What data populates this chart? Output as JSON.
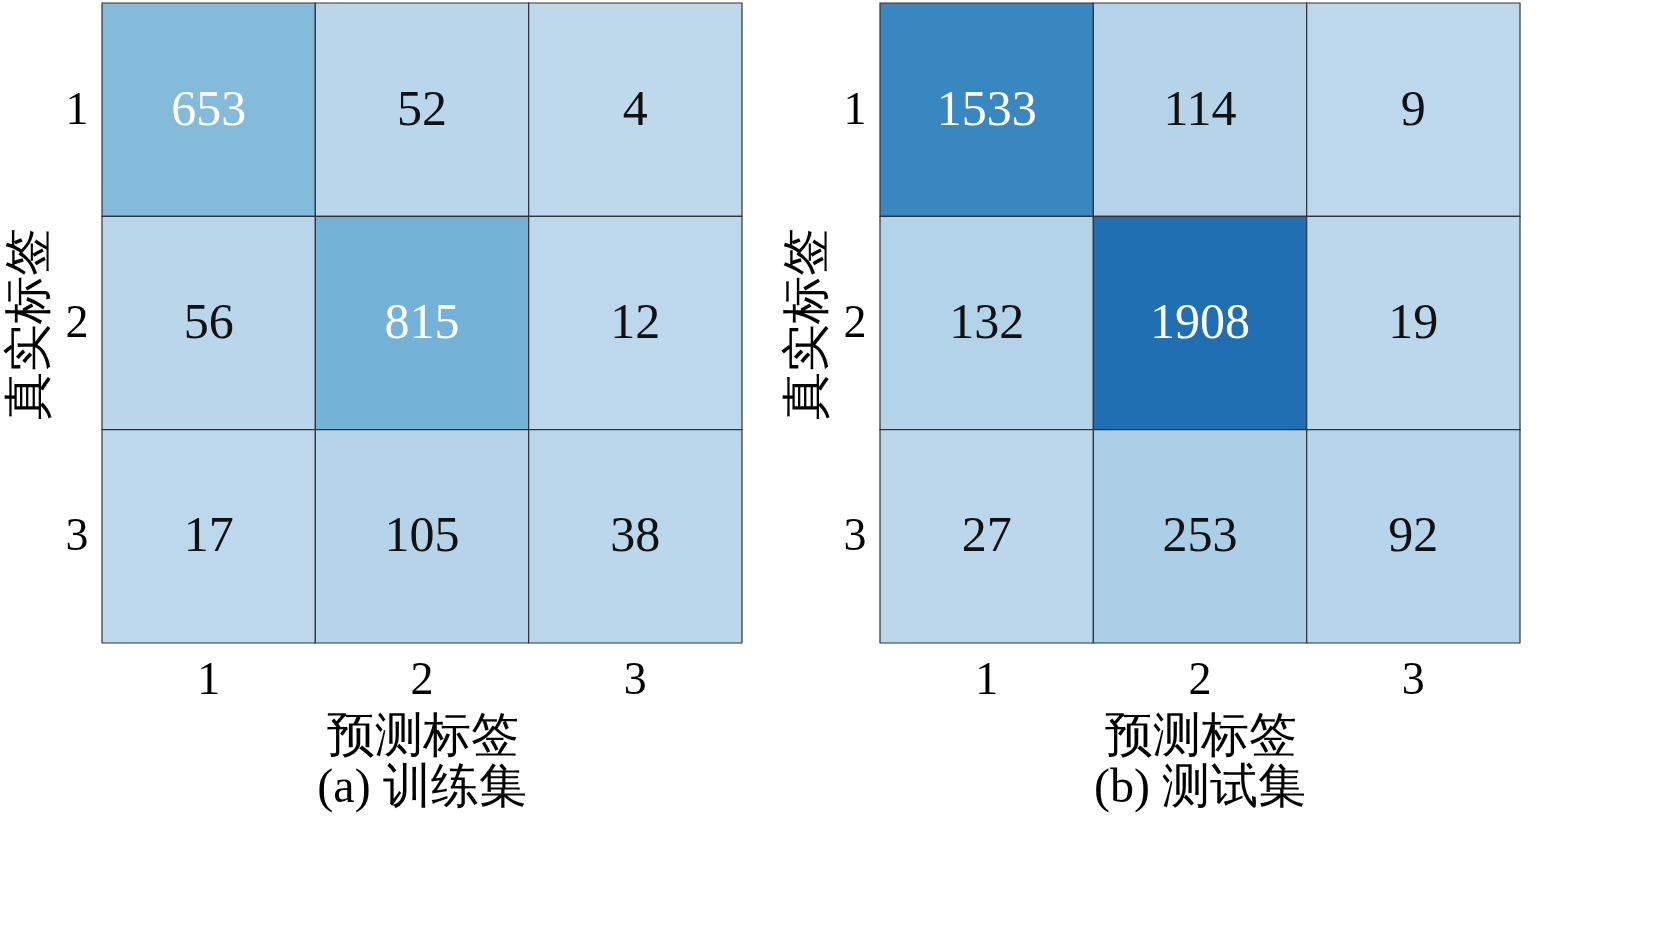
{
  "chart_data": [
    {
      "type": "heatmap",
      "title": "(a) 训练集",
      "xlabel": "预测标签",
      "ylabel": "真实标签",
      "categories": [
        "1",
        "2",
        "3"
      ],
      "y_categories": [
        "1",
        "2",
        "3"
      ],
      "data_labels": true,
      "cells": [
        [
          653,
          52,
          4
        ],
        [
          56,
          815,
          12
        ],
        [
          17,
          105,
          38
        ]
      ]
    },
    {
      "type": "heatmap",
      "title": "(b) 测试集",
      "xlabel": "预测标签",
      "ylabel": "真实标签",
      "categories": [
        "1",
        "2",
        "3"
      ],
      "y_categories": [
        "1",
        "2",
        "3"
      ],
      "data_labels": true,
      "cells": [
        [
          1533,
          114,
          9
        ],
        [
          132,
          1908,
          19
        ],
        [
          27,
          253,
          92
        ]
      ]
    }
  ]
}
